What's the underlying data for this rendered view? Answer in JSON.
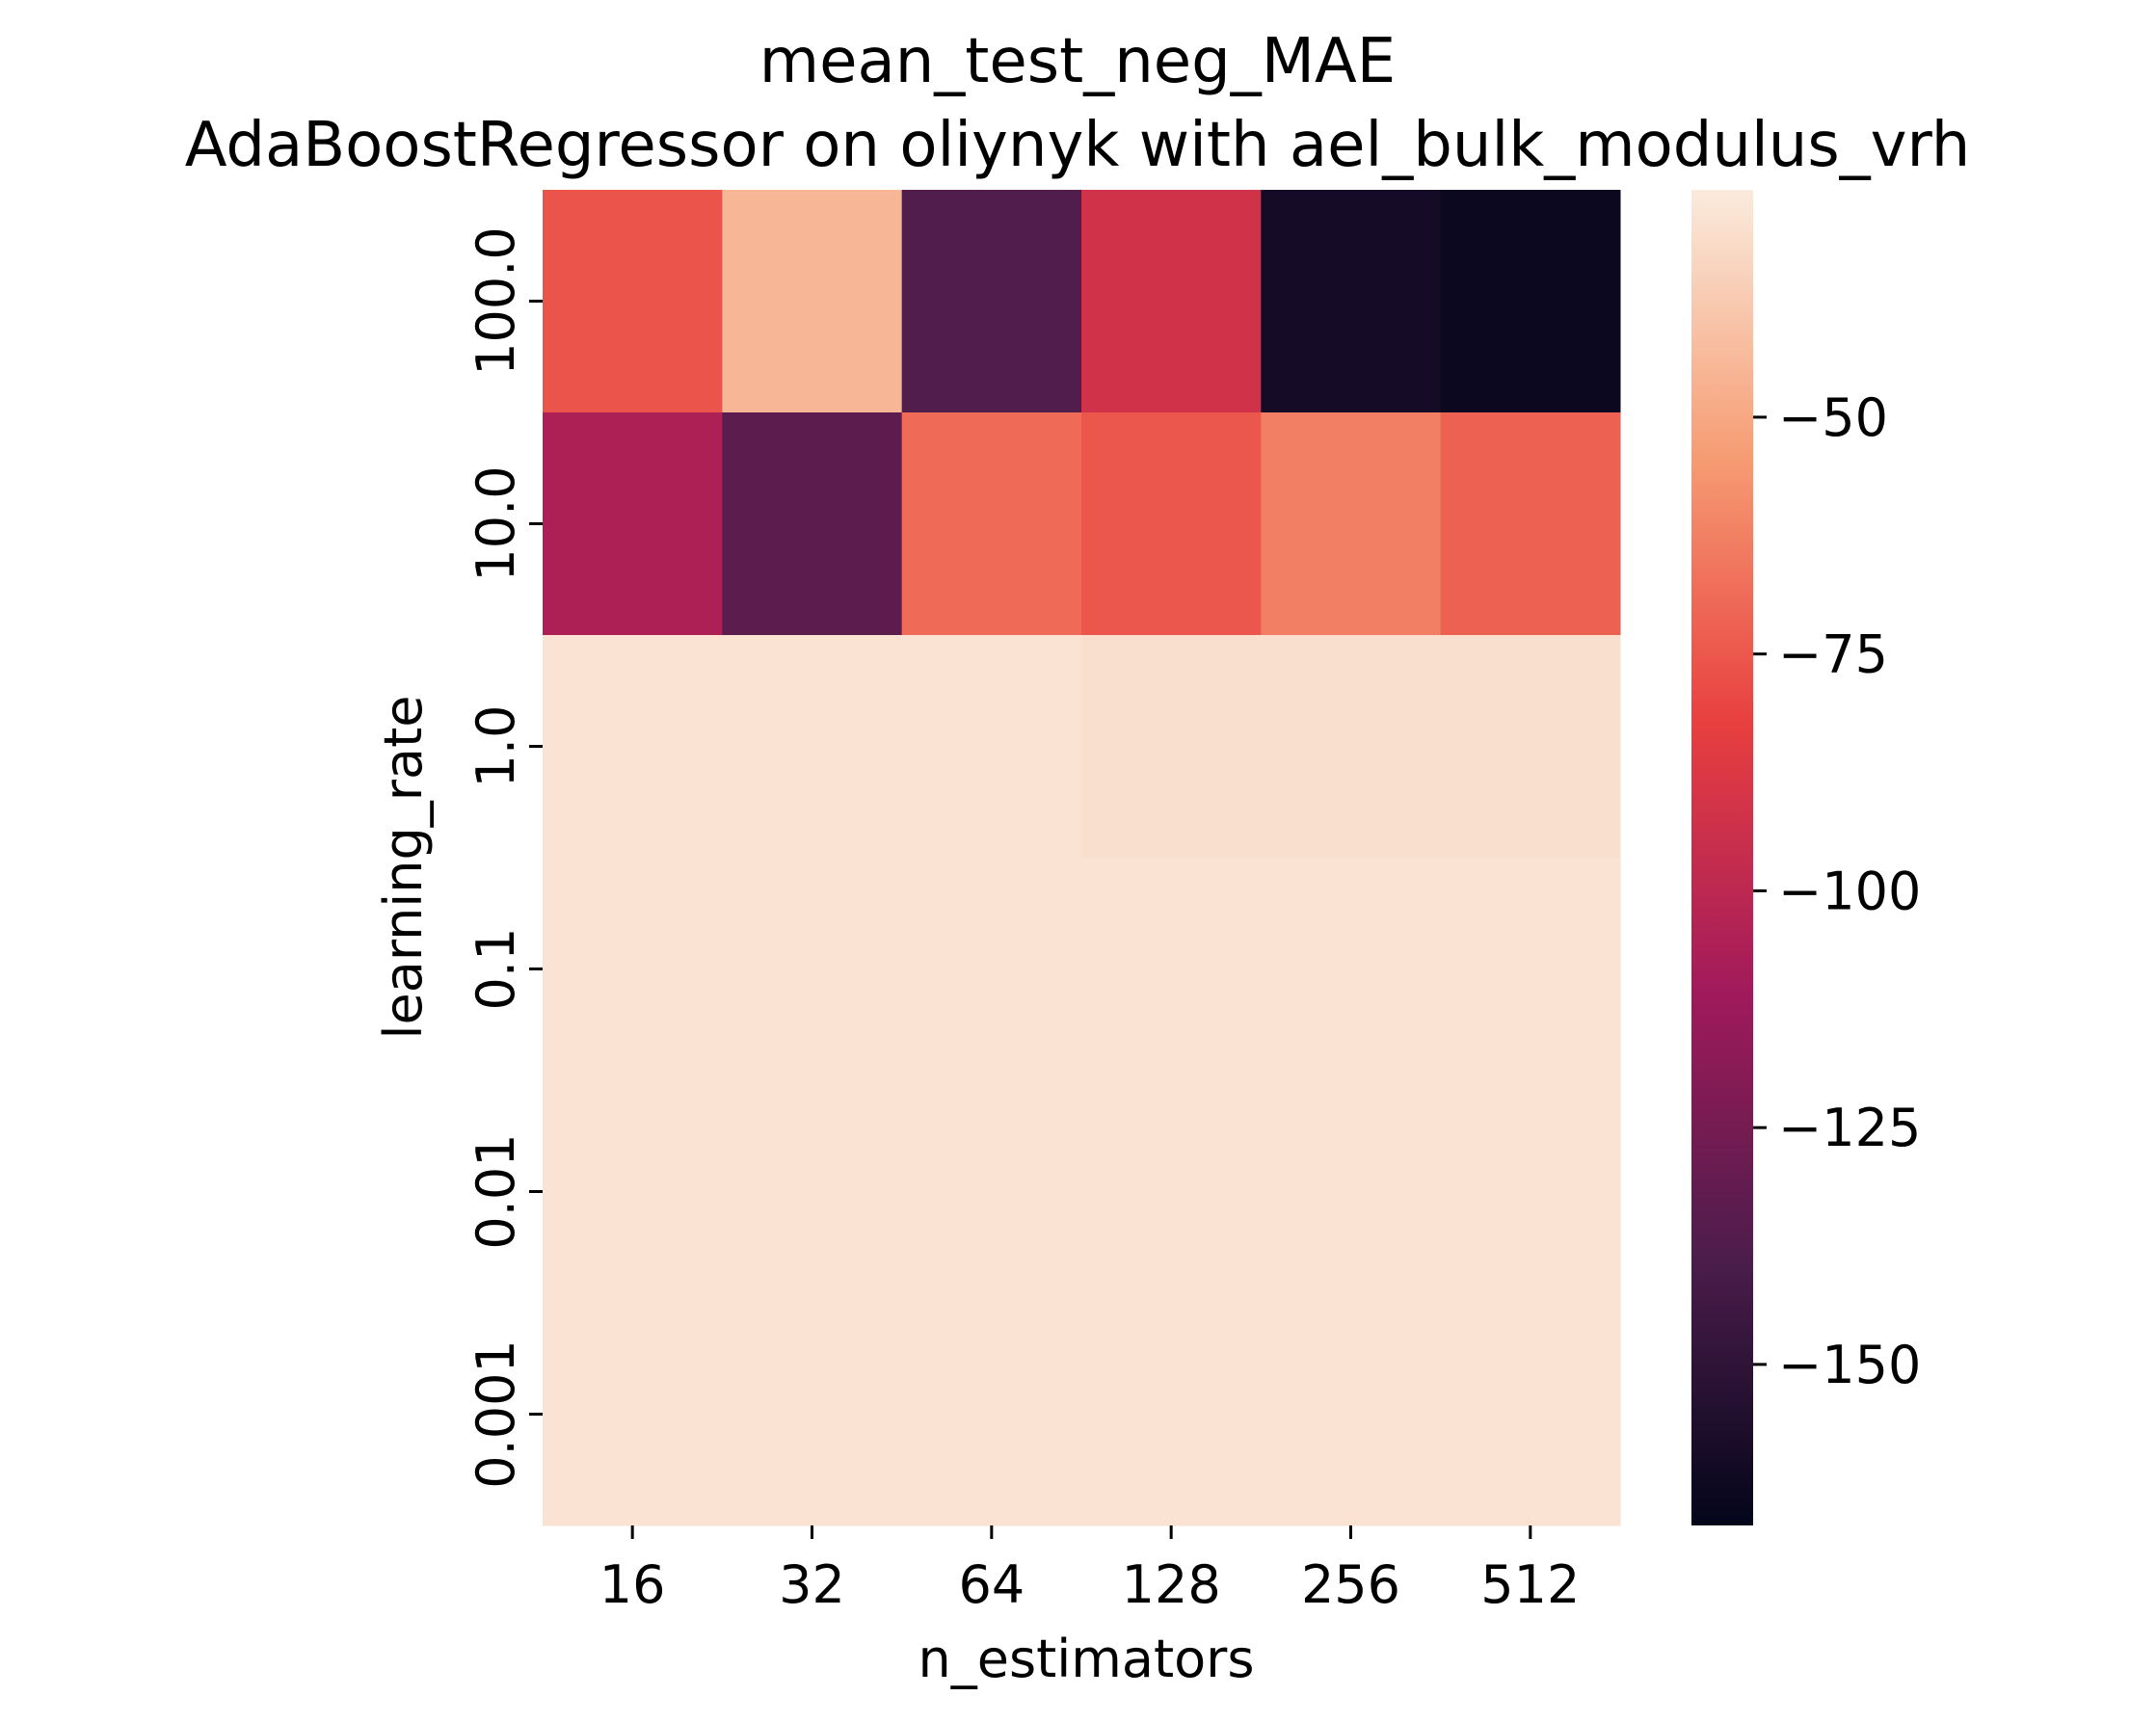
{
  "chart_data": {
    "type": "heatmap",
    "title": "mean_test_neg_MAE",
    "subtitle": "AdaBoostRegressor on oliynyk with ael_bulk_modulus_vrh",
    "xlabel": "n_estimators",
    "ylabel": "learning_rate",
    "x_categories": [
      "16",
      "32",
      "64",
      "128",
      "256",
      "512"
    ],
    "y_categories": [
      "100.0",
      "10.0",
      "1.0",
      "0.1",
      "0.01",
      "0.001"
    ],
    "values": [
      [
        -76,
        -45,
        -137,
        -92,
        -160,
        -164
      ],
      [
        -106,
        -133,
        -69,
        -75,
        -63,
        -72
      ],
      [
        -29,
        -29,
        -29,
        -30,
        -30,
        -30
      ],
      [
        -29,
        -29,
        -29,
        -29,
        -29,
        -29
      ],
      [
        -29,
        -29,
        -29,
        -29,
        -29,
        -29
      ],
      [
        -29,
        -29,
        -29,
        -29,
        -29,
        -29
      ]
    ],
    "colorbar": {
      "min": -167,
      "max": -26,
      "ticks": [
        -50,
        -75,
        -100,
        -125,
        -150
      ],
      "tick_labels": [
        "−50",
        "−75",
        "−100",
        "−125",
        "−150"
      ]
    },
    "colormap": [
      "#03051a",
      "#4c1d4b",
      "#a11a5b",
      "#e83f3f",
      "#f69c73",
      "#faebdd"
    ]
  }
}
